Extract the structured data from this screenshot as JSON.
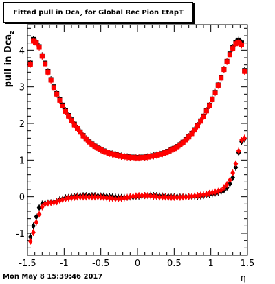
{
  "header": {
    "title_prefix": "Fitted pull in Dca",
    "title_sub": "z",
    "title_suffix": " for Global Rec Pion EtapT"
  },
  "footer": {
    "timestamp": "Mon May  8 15:39:46 2017",
    "xlabel": "η"
  },
  "axis": {
    "ylabel_prefix": "pull in Dca",
    "ylabel_sub": "z"
  },
  "chart_data": {
    "type": "scatter",
    "title": "Fitted pull in Dca_z for Global Rec Pion EtapT",
    "xlabel": "η",
    "ylabel": "pull in Dca_z",
    "xlim": [
      -1.5,
      1.5
    ],
    "ylim": [
      -1.6,
      4.7
    ],
    "x_ticks": [
      "-1.5",
      "-1",
      "-0.5",
      "0",
      "0.5",
      "1",
      "1.5"
    ],
    "y_ticks": [
      "-1",
      "0",
      "1",
      "2",
      "3",
      "4"
    ],
    "grid": false,
    "series": [
      {
        "marker": "square",
        "color": "#000000",
        "points": [
          [
            -1.46,
            3.65
          ],
          [
            -1.42,
            4.3
          ],
          [
            -1.38,
            4.22
          ],
          [
            -1.34,
            4.1
          ],
          [
            -1.3,
            3.85
          ],
          [
            -1.26,
            3.65
          ],
          [
            -1.22,
            3.42
          ],
          [
            -1.18,
            3.2
          ],
          [
            -1.14,
            3.0
          ],
          [
            -1.1,
            2.82
          ],
          [
            -1.06,
            2.65
          ],
          [
            -1.02,
            2.5
          ],
          [
            -0.98,
            2.35
          ],
          [
            -0.94,
            2.22
          ],
          [
            -0.9,
            2.1
          ],
          [
            -0.86,
            1.98
          ],
          [
            -0.82,
            1.87
          ],
          [
            -0.78,
            1.77
          ],
          [
            -0.74,
            1.67
          ],
          [
            -0.7,
            1.58
          ],
          [
            -0.66,
            1.5
          ],
          [
            -0.62,
            1.44
          ],
          [
            -0.58,
            1.38
          ],
          [
            -0.54,
            1.33
          ],
          [
            -0.5,
            1.29
          ],
          [
            -0.46,
            1.25
          ],
          [
            -0.42,
            1.22
          ],
          [
            -0.38,
            1.19
          ],
          [
            -0.34,
            1.17
          ],
          [
            -0.3,
            1.15
          ],
          [
            -0.26,
            1.13
          ],
          [
            -0.22,
            1.11
          ],
          [
            -0.18,
            1.1
          ],
          [
            -0.14,
            1.09
          ],
          [
            -0.1,
            1.08
          ],
          [
            -0.06,
            1.08
          ],
          [
            -0.02,
            1.07
          ],
          [
            0.02,
            1.07
          ],
          [
            0.06,
            1.08
          ],
          [
            0.1,
            1.08
          ],
          [
            0.14,
            1.09
          ],
          [
            0.18,
            1.11
          ],
          [
            0.22,
            1.12
          ],
          [
            0.26,
            1.14
          ],
          [
            0.3,
            1.16
          ],
          [
            0.34,
            1.18
          ],
          [
            0.38,
            1.21
          ],
          [
            0.42,
            1.24
          ],
          [
            0.46,
            1.28
          ],
          [
            0.5,
            1.32
          ],
          [
            0.54,
            1.37
          ],
          [
            0.58,
            1.42
          ],
          [
            0.62,
            1.49
          ],
          [
            0.66,
            1.56
          ],
          [
            0.7,
            1.64
          ],
          [
            0.74,
            1.73
          ],
          [
            0.78,
            1.83
          ],
          [
            0.82,
            1.94
          ],
          [
            0.86,
            2.07
          ],
          [
            0.9,
            2.2
          ],
          [
            0.94,
            2.35
          ],
          [
            0.98,
            2.5
          ],
          [
            1.02,
            2.67
          ],
          [
            1.06,
            2.85
          ],
          [
            1.1,
            3.05
          ],
          [
            1.14,
            3.25
          ],
          [
            1.18,
            3.48
          ],
          [
            1.22,
            3.7
          ],
          [
            1.26,
            3.9
          ],
          [
            1.3,
            4.08
          ],
          [
            1.34,
            4.22
          ],
          [
            1.38,
            4.28
          ],
          [
            1.42,
            4.2
          ],
          [
            1.46,
            3.45
          ]
        ]
      },
      {
        "marker": "square",
        "color": "#ff0000",
        "points": [
          [
            -1.46,
            3.62
          ],
          [
            -1.42,
            4.25
          ],
          [
            -1.38,
            4.2
          ],
          [
            -1.34,
            4.08
          ],
          [
            -1.3,
            3.84
          ],
          [
            -1.26,
            3.63
          ],
          [
            -1.22,
            3.4
          ],
          [
            -1.18,
            3.18
          ],
          [
            -1.14,
            2.98
          ],
          [
            -1.1,
            2.8
          ],
          [
            -1.06,
            2.63
          ],
          [
            -1.02,
            2.48
          ],
          [
            -0.98,
            2.33
          ],
          [
            -0.94,
            2.2
          ],
          [
            -0.9,
            2.08
          ],
          [
            -0.86,
            1.96
          ],
          [
            -0.82,
            1.86
          ],
          [
            -0.78,
            1.76
          ],
          [
            -0.74,
            1.66
          ],
          [
            -0.7,
            1.57
          ],
          [
            -0.66,
            1.49
          ],
          [
            -0.62,
            1.43
          ],
          [
            -0.58,
            1.37
          ],
          [
            -0.54,
            1.32
          ],
          [
            -0.5,
            1.28
          ],
          [
            -0.46,
            1.24
          ],
          [
            -0.42,
            1.21
          ],
          [
            -0.38,
            1.18
          ],
          [
            -0.34,
            1.16
          ],
          [
            -0.3,
            1.14
          ],
          [
            -0.26,
            1.12
          ],
          [
            -0.22,
            1.1
          ],
          [
            -0.18,
            1.09
          ],
          [
            -0.14,
            1.08
          ],
          [
            -0.1,
            1.07
          ],
          [
            -0.06,
            1.07
          ],
          [
            -0.02,
            1.06
          ],
          [
            0.02,
            1.06
          ],
          [
            0.06,
            1.07
          ],
          [
            0.1,
            1.07
          ],
          [
            0.14,
            1.08
          ],
          [
            0.18,
            1.1
          ],
          [
            0.22,
            1.11
          ],
          [
            0.26,
            1.13
          ],
          [
            0.3,
            1.15
          ],
          [
            0.34,
            1.17
          ],
          [
            0.38,
            1.2
          ],
          [
            0.42,
            1.23
          ],
          [
            0.46,
            1.27
          ],
          [
            0.5,
            1.31
          ],
          [
            0.54,
            1.36
          ],
          [
            0.58,
            1.41
          ],
          [
            0.62,
            1.48
          ],
          [
            0.66,
            1.55
          ],
          [
            0.7,
            1.63
          ],
          [
            0.74,
            1.72
          ],
          [
            0.78,
            1.82
          ],
          [
            0.82,
            1.93
          ],
          [
            0.86,
            2.06
          ],
          [
            0.9,
            2.19
          ],
          [
            0.94,
            2.34
          ],
          [
            0.98,
            2.49
          ],
          [
            1.02,
            2.66
          ],
          [
            1.06,
            2.84
          ],
          [
            1.1,
            3.04
          ],
          [
            1.14,
            3.24
          ],
          [
            1.18,
            3.47
          ],
          [
            1.22,
            3.69
          ],
          [
            1.26,
            3.88
          ],
          [
            1.3,
            4.05
          ],
          [
            1.34,
            4.18
          ],
          [
            1.38,
            4.22
          ],
          [
            1.42,
            4.15
          ],
          [
            1.46,
            3.42
          ]
        ]
      },
      {
        "marker": "diamond",
        "color": "#000000",
        "points": [
          [
            -1.46,
            -1.1
          ],
          [
            -1.42,
            -0.8
          ],
          [
            -1.38,
            -0.55
          ],
          [
            -1.34,
            -0.3
          ],
          [
            -1.3,
            -0.2
          ],
          [
            -1.26,
            -0.18
          ],
          [
            -1.22,
            -0.17
          ],
          [
            -1.18,
            -0.16
          ],
          [
            -1.14,
            -0.15
          ],
          [
            -1.1,
            -0.13
          ],
          [
            -1.06,
            -0.08
          ],
          [
            -1.02,
            -0.06
          ],
          [
            -0.98,
            -0.03
          ],
          [
            -0.94,
            -0.02
          ],
          [
            -0.9,
            0.0
          ],
          [
            -0.86,
            0.01
          ],
          [
            -0.82,
            0.02
          ],
          [
            -0.78,
            0.02
          ],
          [
            -0.74,
            0.03
          ],
          [
            -0.7,
            0.03
          ],
          [
            -0.66,
            0.03
          ],
          [
            -0.62,
            0.03
          ],
          [
            -0.58,
            0.03
          ],
          [
            -0.54,
            0.02
          ],
          [
            -0.5,
            0.02
          ],
          [
            -0.46,
            0.02
          ],
          [
            -0.42,
            0.01
          ],
          [
            -0.38,
            0.0
          ],
          [
            -0.34,
            0.0
          ],
          [
            -0.3,
            -0.01
          ],
          [
            -0.26,
            -0.02
          ],
          [
            -0.22,
            -0.02
          ],
          [
            -0.18,
            -0.02
          ],
          [
            -0.14,
            -0.02
          ],
          [
            -0.1,
            -0.01
          ],
          [
            -0.06,
            -0.01
          ],
          [
            -0.02,
            0.0
          ],
          [
            0.02,
            0.01
          ],
          [
            0.06,
            0.02
          ],
          [
            0.1,
            0.03
          ],
          [
            0.14,
            0.03
          ],
          [
            0.18,
            0.04
          ],
          [
            0.22,
            0.03
          ],
          [
            0.26,
            0.03
          ],
          [
            0.3,
            0.02
          ],
          [
            0.34,
            0.02
          ],
          [
            0.38,
            0.01
          ],
          [
            0.42,
            0.01
          ],
          [
            0.46,
            0.0
          ],
          [
            0.5,
            0.0
          ],
          [
            0.54,
            0.0
          ],
          [
            0.58,
            0.0
          ],
          [
            0.62,
            0.0
          ],
          [
            0.66,
            0.0
          ],
          [
            0.7,
            0.0
          ],
          [
            0.74,
            0.0
          ],
          [
            0.78,
            0.01
          ],
          [
            0.82,
            0.01
          ],
          [
            0.86,
            0.02
          ],
          [
            0.9,
            0.03
          ],
          [
            0.94,
            0.05
          ],
          [
            0.98,
            0.06
          ],
          [
            1.02,
            0.08
          ],
          [
            1.06,
            0.1
          ],
          [
            1.1,
            0.12
          ],
          [
            1.14,
            0.14
          ],
          [
            1.18,
            0.18
          ],
          [
            1.22,
            0.25
          ],
          [
            1.26,
            0.35
          ],
          [
            1.3,
            0.52
          ],
          [
            1.34,
            0.8
          ],
          [
            1.38,
            1.2
          ],
          [
            1.42,
            1.5
          ],
          [
            1.46,
            1.58
          ]
        ]
      },
      {
        "marker": "diamond",
        "color": "#ff0000",
        "points": [
          [
            -1.46,
            -1.22
          ],
          [
            -1.42,
            -0.98
          ],
          [
            -1.38,
            -0.7
          ],
          [
            -1.34,
            -0.48
          ],
          [
            -1.3,
            -0.28
          ],
          [
            -1.26,
            -0.2
          ],
          [
            -1.22,
            -0.18
          ],
          [
            -1.18,
            -0.17
          ],
          [
            -1.14,
            -0.16
          ],
          [
            -1.1,
            -0.14
          ],
          [
            -1.06,
            -0.11
          ],
          [
            -1.02,
            -0.08
          ],
          [
            -0.98,
            -0.06
          ],
          [
            -0.94,
            -0.04
          ],
          [
            -0.9,
            -0.03
          ],
          [
            -0.86,
            -0.02
          ],
          [
            -0.82,
            -0.01
          ],
          [
            -0.78,
            -0.01
          ],
          [
            -0.74,
            -0.01
          ],
          [
            -0.7,
            -0.01
          ],
          [
            -0.66,
            -0.01
          ],
          [
            -0.62,
            -0.01
          ],
          [
            -0.58,
            -0.01
          ],
          [
            -0.54,
            -0.01
          ],
          [
            -0.5,
            -0.01
          ],
          [
            -0.46,
            -0.02
          ],
          [
            -0.42,
            -0.03
          ],
          [
            -0.38,
            -0.04
          ],
          [
            -0.34,
            -0.05
          ],
          [
            -0.3,
            -0.06
          ],
          [
            -0.26,
            -0.06
          ],
          [
            -0.22,
            -0.05
          ],
          [
            -0.18,
            -0.04
          ],
          [
            -0.14,
            -0.02
          ],
          [
            -0.1,
            0.0
          ],
          [
            -0.06,
            0.01
          ],
          [
            -0.02,
            0.02
          ],
          [
            0.02,
            0.03
          ],
          [
            0.06,
            0.03
          ],
          [
            0.1,
            0.03
          ],
          [
            0.14,
            0.03
          ],
          [
            0.18,
            0.02
          ],
          [
            0.22,
            0.01
          ],
          [
            0.26,
            0.0
          ],
          [
            0.3,
            -0.01
          ],
          [
            0.34,
            -0.01
          ],
          [
            0.38,
            -0.01
          ],
          [
            0.42,
            -0.02
          ],
          [
            0.46,
            -0.02
          ],
          [
            0.5,
            -0.02
          ],
          [
            0.54,
            -0.02
          ],
          [
            0.58,
            -0.02
          ],
          [
            0.62,
            -0.01
          ],
          [
            0.66,
            -0.01
          ],
          [
            0.7,
            0.0
          ],
          [
            0.74,
            0.01
          ],
          [
            0.78,
            0.02
          ],
          [
            0.82,
            0.03
          ],
          [
            0.86,
            0.04
          ],
          [
            0.9,
            0.05
          ],
          [
            0.94,
            0.07
          ],
          [
            0.98,
            0.09
          ],
          [
            1.02,
            0.11
          ],
          [
            1.06,
            0.13
          ],
          [
            1.1,
            0.15
          ],
          [
            1.14,
            0.18
          ],
          [
            1.18,
            0.25
          ],
          [
            1.22,
            0.33
          ],
          [
            1.26,
            0.45
          ],
          [
            1.3,
            0.65
          ],
          [
            1.34,
            0.9
          ],
          [
            1.38,
            1.25
          ],
          [
            1.42,
            1.55
          ],
          [
            1.46,
            1.6
          ]
        ]
      }
    ]
  }
}
